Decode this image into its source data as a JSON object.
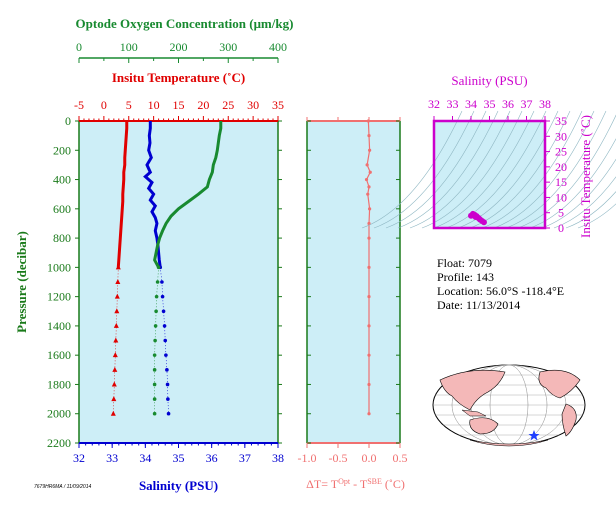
{
  "colors": {
    "background": "#cdeef7",
    "temperature": "#e00000",
    "salinity": "#0000d0",
    "oxygen": "#188a30",
    "delta_t": "#f07070",
    "magenta": "#cc00cc",
    "frame_green": "#1a7a1a"
  },
  "footer_code": "7679HR6MA / 11/09/2014",
  "info": {
    "float": "Float:  7079",
    "profile": "Profile:  143",
    "location": "Location:  56.0°S  -118.4°E",
    "date": "Date:  11/13/2014"
  },
  "chart_data": [
    {
      "type": "line",
      "panel": "main-profile",
      "ylabel": "Pressure (decibar)",
      "y_range": [
        2200,
        0
      ],
      "y_ticks": [
        "0",
        "200",
        "400",
        "600",
        "800",
        "1000",
        "1200",
        "1400",
        "1600",
        "1800",
        "2000",
        "2200"
      ],
      "axes": {
        "oxygen": {
          "title": "Optode Oxygen Concentration (μm/kg)",
          "range": [
            0,
            400
          ],
          "ticks": [
            "0",
            "100",
            "200",
            "300",
            "400"
          ]
        },
        "temperature": {
          "title": "Insitu Temperature (˚C)",
          "range": [
            -5,
            35
          ],
          "ticks": [
            "-5",
            "0",
            "5",
            "10",
            "15",
            "20",
            "25",
            "30",
            "35"
          ]
        },
        "salinity": {
          "title": "Salinity (PSU)",
          "range": [
            32,
            38
          ],
          "ticks": [
            "32",
            "33",
            "34",
            "35",
            "36",
            "37",
            "38"
          ]
        }
      },
      "series": [
        {
          "name": "temperature",
          "axis": "temperature",
          "points": [
            [
              4.6,
              0
            ],
            [
              4.6,
              50
            ],
            [
              4.5,
              100
            ],
            [
              4.4,
              150
            ],
            [
              4.3,
              200
            ],
            [
              4.2,
              250
            ],
            [
              4.2,
              300
            ],
            [
              4.0,
              350
            ],
            [
              4.0,
              400
            ],
            [
              3.9,
              450
            ],
            [
              3.8,
              500
            ],
            [
              3.8,
              550
            ],
            [
              3.7,
              600
            ],
            [
              3.6,
              650
            ],
            [
              3.5,
              700
            ],
            [
              3.4,
              750
            ],
            [
              3.3,
              800
            ],
            [
              3.2,
              850
            ],
            [
              3.1,
              900
            ],
            [
              3.0,
              950
            ],
            [
              2.9,
              1000
            ],
            [
              2.8,
              1100
            ],
            [
              2.7,
              1200
            ],
            [
              2.6,
              1300
            ],
            [
              2.5,
              1400
            ],
            [
              2.4,
              1500
            ],
            [
              2.3,
              1600
            ],
            [
              2.2,
              1700
            ],
            [
              2.1,
              1800
            ],
            [
              2.0,
              1900
            ],
            [
              1.9,
              2000
            ]
          ]
        },
        {
          "name": "salinity",
          "axis": "salinity",
          "points": [
            [
              34.15,
              0
            ],
            [
              34.15,
              50
            ],
            [
              34.12,
              100
            ],
            [
              34.14,
              150
            ],
            [
              34.1,
              200
            ],
            [
              34.18,
              250
            ],
            [
              34.05,
              300
            ],
            [
              34.15,
              350
            ],
            [
              34.0,
              380
            ],
            [
              34.2,
              420
            ],
            [
              34.1,
              460
            ],
            [
              34.25,
              500
            ],
            [
              34.15,
              540
            ],
            [
              34.3,
              580
            ],
            [
              34.2,
              620
            ],
            [
              34.3,
              660
            ],
            [
              34.35,
              700
            ],
            [
              34.3,
              750
            ],
            [
              34.35,
              800
            ],
            [
              34.38,
              850
            ],
            [
              34.4,
              900
            ],
            [
              34.42,
              950
            ],
            [
              34.45,
              1000
            ],
            [
              34.5,
              1100
            ],
            [
              34.52,
              1200
            ],
            [
              34.55,
              1300
            ],
            [
              34.58,
              1400
            ],
            [
              34.6,
              1500
            ],
            [
              34.62,
              1600
            ],
            [
              34.65,
              1700
            ],
            [
              34.67,
              1800
            ],
            [
              34.68,
              1900
            ],
            [
              34.7,
              2000
            ]
          ]
        },
        {
          "name": "oxygen",
          "axis": "oxygen",
          "points": [
            [
              285,
              0
            ],
            [
              285,
              50
            ],
            [
              282,
              100
            ],
            [
              280,
              150
            ],
            [
              278,
              200
            ],
            [
              275,
              250
            ],
            [
              270,
              300
            ],
            [
              268,
              350
            ],
            [
              262,
              400
            ],
            [
              258,
              450
            ],
            [
              240,
              500
            ],
            [
              220,
              550
            ],
            [
              200,
              600
            ],
            [
              185,
              650
            ],
            [
              175,
              700
            ],
            [
              168,
              750
            ],
            [
              162,
              800
            ],
            [
              158,
              850
            ],
            [
              155,
              900
            ],
            [
              152,
              950
            ],
            [
              160,
              1000
            ],
            [
              158,
              1100
            ],
            [
              156,
              1200
            ],
            [
              155,
              1300
            ],
            [
              154,
              1400
            ],
            [
              153,
              1500
            ],
            [
              152,
              1600
            ],
            [
              152,
              1700
            ],
            [
              152,
              1800
            ],
            [
              152,
              1900
            ],
            [
              152,
              2000
            ]
          ]
        }
      ]
    },
    {
      "type": "line",
      "panel": "delta-t",
      "xlabel": "ΔT= T^Opt - T^SBE (˚C)",
      "x_range": [
        -1.0,
        0.5
      ],
      "x_ticks": [
        "-1.0",
        "-0.5",
        "0.0",
        "0.5"
      ],
      "series": [
        {
          "name": "delta_t",
          "points": [
            [
              -0.01,
              0
            ],
            [
              0.0,
              100
            ],
            [
              0.01,
              200
            ],
            [
              -0.03,
              300
            ],
            [
              0.02,
              350
            ],
            [
              -0.04,
              400
            ],
            [
              0.0,
              450
            ],
            [
              -0.02,
              500
            ],
            [
              0.01,
              600
            ],
            [
              0.0,
              700
            ],
            [
              0.0,
              800
            ],
            [
              0.0,
              1000
            ],
            [
              0.0,
              1200
            ],
            [
              0.0,
              1400
            ],
            [
              0.0,
              1600
            ],
            [
              0.0,
              1800
            ],
            [
              0.0,
              2000
            ]
          ]
        }
      ]
    },
    {
      "type": "scatter",
      "panel": "ts-diagram",
      "xlabel": "Salinity (PSU)",
      "ylabel": "Insitu Temperature (˚C)",
      "x_range": [
        32,
        38
      ],
      "y_range": [
        0,
        35
      ],
      "x_ticks": [
        "32",
        "33",
        "34",
        "35",
        "36",
        "37",
        "38"
      ],
      "y_ticks": [
        "0",
        "5",
        "10",
        "15",
        "20",
        "25",
        "30",
        "35"
      ],
      "points": [
        [
          34.1,
          4.6
        ],
        [
          34.2,
          4.3
        ],
        [
          34.3,
          3.9
        ],
        [
          34.4,
          3.3
        ],
        [
          34.5,
          2.7
        ],
        [
          34.6,
          2.3
        ],
        [
          34.7,
          1.9
        ],
        [
          34.0,
          4.0
        ],
        [
          34.25,
          3.6
        ],
        [
          34.45,
          3.0
        ]
      ]
    }
  ]
}
